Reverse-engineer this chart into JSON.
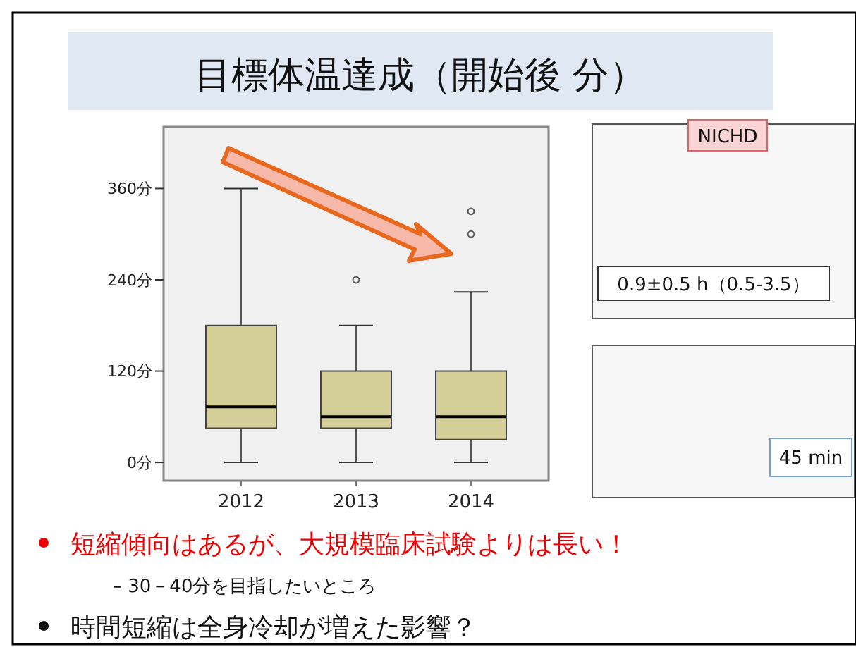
{
  "chart_data": [
    {
      "type": "box",
      "title": "目標体温達成（開始後 分）",
      "categories": [
        "2012",
        "2013",
        "2014"
      ],
      "boxes": [
        {
          "low": 0,
          "q1": 45,
          "median": 73,
          "q3": 180,
          "high": 360
        },
        {
          "low": 0,
          "q1": 45,
          "median": 60,
          "q3": 120,
          "high": 180,
          "outliers": [
            240
          ]
        },
        {
          "low": 0,
          "q1": 30,
          "median": 60,
          "q3": 120,
          "high": 224,
          "outliers": [
            300,
            330
          ]
        }
      ],
      "color": "#d4cf98",
      "ylim": [
        -24,
        441
      ],
      "yticks": [
        {
          "value": 0,
          "label": "0分"
        },
        {
          "value": 120,
          "label": "120分"
        },
        {
          "value": 240,
          "label": "240分"
        },
        {
          "value": 360,
          "label": "360分"
        }
      ],
      "annotations": [
        "短縮傾向はあるが、大規模臨床試験よりは長い！",
        "– 30－40分を目指したいところ",
        "時間短縮は全身冷却が増えた影響？"
      ]
    },
    {
      "type": "other",
      "title": "NICHD",
      "annotations": [
        "0.9±0.5 h（0.5-3.5）"
      ]
    },
    {
      "type": "other",
      "annotations": [
        "45 min"
      ]
    }
  ]
}
